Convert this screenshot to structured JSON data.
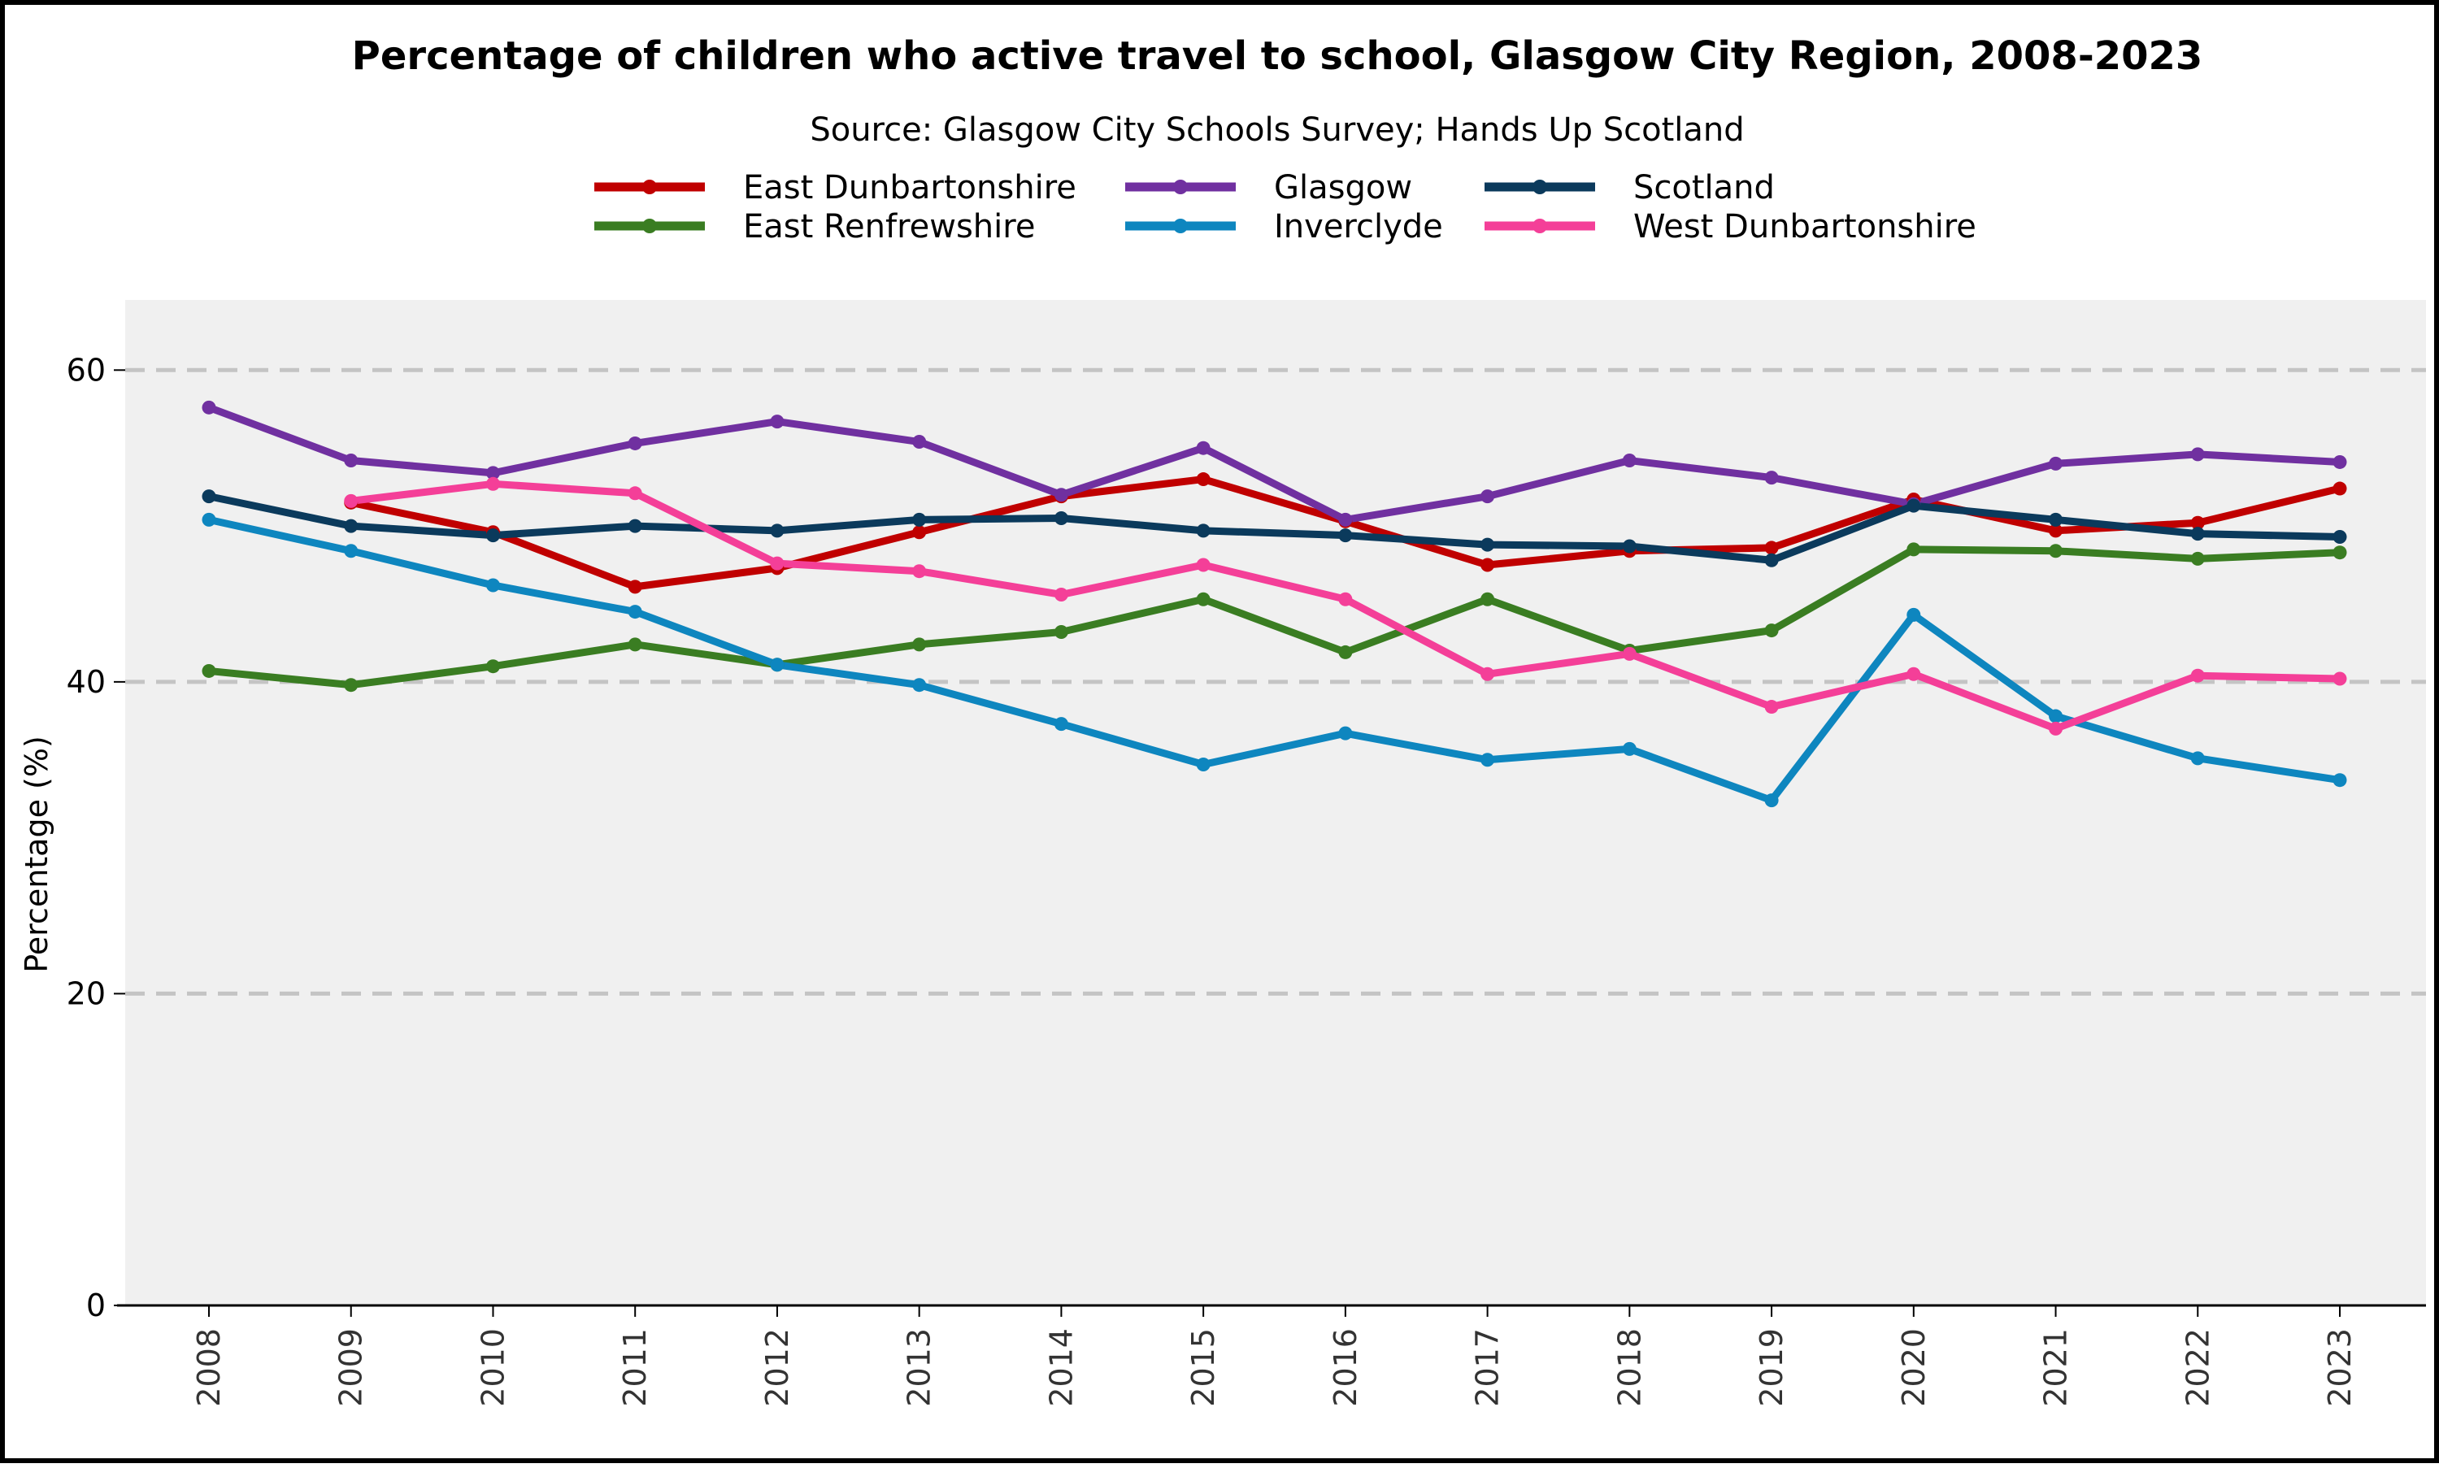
{
  "chart_data": {
    "type": "line",
    "title": "Percentage of children who active travel to school, Glasgow City Region, 2008-2023",
    "subtitle": "Source: Glasgow City Schools Survey; Hands Up Scotland",
    "xlabel": "",
    "ylabel": "Percentage (%)",
    "ylim": [
      0,
      64.5
    ],
    "yticks": [
      0,
      20,
      40,
      60
    ],
    "grid": "horizontal dashed",
    "legend_position": "top",
    "x": [
      "2008",
      "2009",
      "2010",
      "2011",
      "2012",
      "2013",
      "2014",
      "2015",
      "2016",
      "2017",
      "2018",
      "2019",
      "2020",
      "2021",
      "2022",
      "2023"
    ],
    "series": [
      {
        "name": "East Dunbartonshire",
        "color": "#c00000",
        "values": [
          null,
          51.5,
          49.6,
          46.1,
          47.3,
          49.6,
          51.9,
          53.0,
          50.3,
          47.5,
          48.4,
          48.6,
          51.7,
          49.7,
          50.2,
          52.4
        ]
      },
      {
        "name": "East Renfrewshire",
        "color": "#3a7d22",
        "values": [
          40.7,
          39.8,
          41.0,
          42.4,
          41.1,
          42.4,
          43.2,
          45.3,
          41.9,
          45.3,
          42.0,
          43.3,
          48.5,
          48.4,
          47.9,
          48.3
        ]
      },
      {
        "name": "Glasgow",
        "color": "#7030a0",
        "values": [
          57.6,
          54.2,
          53.4,
          55.3,
          56.7,
          55.4,
          52.0,
          55.0,
          50.4,
          51.9,
          54.2,
          53.1,
          51.4,
          54.0,
          54.6,
          54.1
        ]
      },
      {
        "name": "Inverclyde",
        "color": "#0e86bf",
        "values": [
          50.4,
          48.4,
          46.2,
          44.5,
          41.1,
          39.8,
          37.3,
          34.7,
          36.7,
          35.0,
          35.7,
          32.4,
          44.3,
          37.8,
          35.1,
          33.7
        ]
      },
      {
        "name": "Scotland",
        "color": "#0b3a5c",
        "values": [
          51.9,
          50.0,
          49.4,
          50.0,
          49.7,
          50.4,
          50.5,
          49.7,
          49.4,
          48.8,
          48.7,
          47.8,
          51.3,
          50.4,
          49.5,
          49.3
        ]
      },
      {
        "name": "West Dunbartonshire",
        "color": "#f43f98",
        "values": [
          null,
          51.6,
          52.7,
          52.1,
          47.6,
          47.1,
          45.6,
          47.5,
          45.3,
          40.5,
          41.8,
          38.4,
          40.5,
          37.0,
          40.4,
          40.2
        ]
      }
    ]
  }
}
